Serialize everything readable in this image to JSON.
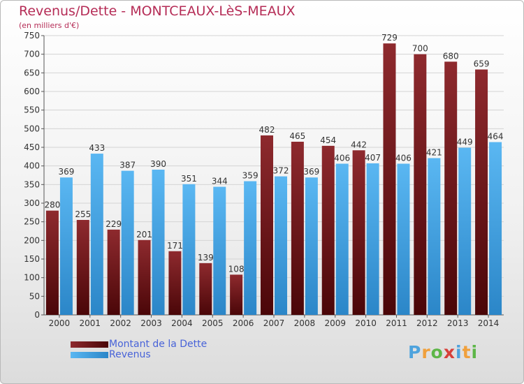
{
  "title": "Revenus/Dette - MONTCEAUX-LèS-MEAUX",
  "subtitle": "(en milliers d'€)",
  "brand": {
    "letters": [
      "P",
      "r",
      "o",
      "x",
      "i",
      "t",
      "i"
    ],
    "colors": [
      "#4ea3dd",
      "#f0a03c",
      "#5db648",
      "#d7403a",
      "#4ea3dd",
      "#f0a03c",
      "#5db648"
    ]
  },
  "colors": {
    "dette": "#7a1e22",
    "revenus": "#4aa6e6",
    "title": "#b52c56",
    "legend_text": "#4863d8"
  },
  "chart_data": {
    "type": "bar",
    "title": "Revenus/Dette - MONTCEAUX-LèS-MEAUX",
    "ylabel": "(en milliers d'€)",
    "ylim": [
      0,
      750
    ],
    "yticks": [
      0,
      50,
      100,
      150,
      200,
      250,
      300,
      350,
      400,
      450,
      500,
      550,
      600,
      650,
      700,
      750
    ],
    "grid": true,
    "legend_position": "bottom-left",
    "categories": [
      "2000",
      "2001",
      "2002",
      "2003",
      "2004",
      "2005",
      "2006",
      "2007",
      "2008",
      "2009",
      "2010",
      "2011",
      "2012",
      "2013",
      "2014"
    ],
    "series": [
      {
        "name": "Montant de la Dette",
        "color": "#7a1e22",
        "values": [
          280,
          255,
          229,
          201,
          171,
          139,
          108,
          482,
          465,
          454,
          442,
          729,
          700,
          680,
          659
        ]
      },
      {
        "name": "Revenus",
        "color": "#4aa6e6",
        "values": [
          369,
          433,
          387,
          390,
          351,
          344,
          359,
          372,
          369,
          406,
          407,
          406,
          421,
          449,
          464
        ]
      }
    ]
  }
}
